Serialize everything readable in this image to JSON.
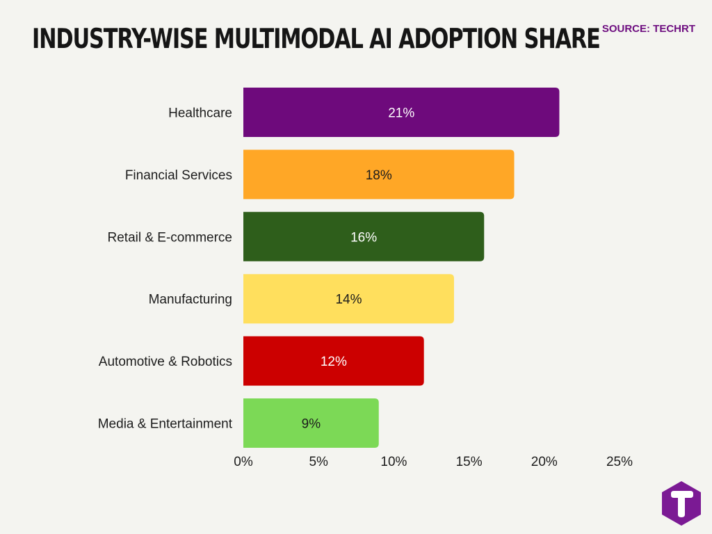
{
  "header": {
    "title": "INDUSTRY-WISE MULTIMODAL AI ADOPTION SHARE",
    "source": "SOURCE: TECHRT"
  },
  "logo": {
    "icon": "techrt-hexagon-t-logo",
    "color": "#7b1a94"
  },
  "chart_data": {
    "type": "bar",
    "orientation": "horizontal",
    "title": "INDUSTRY-WISE MULTIMODAL AI ADOPTION SHARE",
    "xlabel": "",
    "ylabel": "",
    "categories": [
      "Healthcare",
      "Financial Services",
      "Retail & E-commerce",
      "Manufacturing",
      "Automotive & Robotics",
      "Media & Entertainment"
    ],
    "values": [
      21,
      18,
      16,
      14,
      12,
      9
    ],
    "data_labels": [
      "21%",
      "18%",
      "16%",
      "14%",
      "12%",
      "9%"
    ],
    "colors": [
      "#6e0a7c",
      "#ffa726",
      "#2e5e1b",
      "#ffdf5d",
      "#cc0000",
      "#7cd956"
    ],
    "label_colors": [
      "#ffffff",
      "#1c1c1c",
      "#ffffff",
      "#1c1c1c",
      "#ffffff",
      "#1c1c1c"
    ],
    "xlim": [
      0,
      25
    ],
    "xticks": [
      0,
      5,
      10,
      15,
      20,
      25
    ],
    "xtick_labels": [
      "0%",
      "5%",
      "10%",
      "15%",
      "20%",
      "25%"
    ],
    "grid": false,
    "legend": false
  }
}
